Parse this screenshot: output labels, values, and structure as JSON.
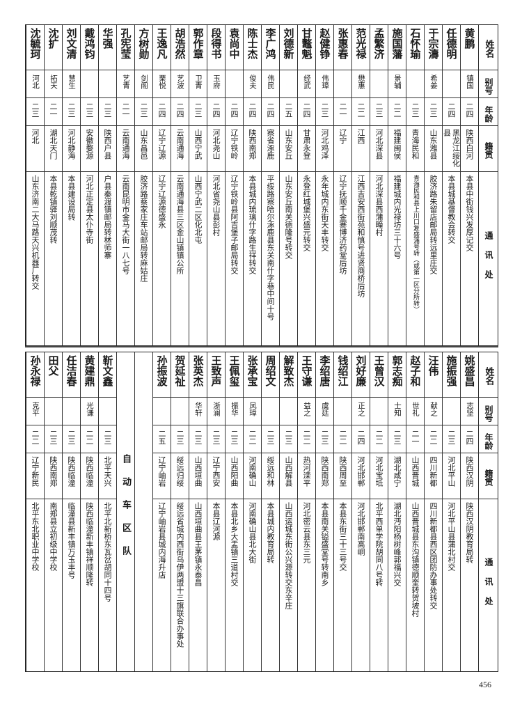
{
  "headers": {
    "name": "姓名",
    "alias": "别号",
    "age": "年龄",
    "native": "籍贯",
    "address": "通讯处"
  },
  "top_table": [
    {
      "name": "黄鹏",
      "alias": "镇国",
      "age": "二四",
      "native": "陕西白河",
      "address": "本县中街钱兴发厚记交"
    },
    {
      "name": "任德明",
      "alias": "",
      "age": "二四",
      "native": "黑龙江绥化县",
      "address": "本县城基督教会转交"
    },
    {
      "name": "于宗濤",
      "alias": "希姜",
      "age": "二三",
      "native": "山东潍县",
      "address": "胶济路朱留店邮局转远里庄交"
    },
    {
      "name": "石怀瑜",
      "alias": "",
      "age": "二三",
      "native": "青海民和",
      "address": "青海民和县上川口复盛涌号转（或第一区分所转）"
    },
    {
      "name": "施国藩",
      "alias": "景辅",
      "age": "二二",
      "native": "福建闽侯",
      "address": "福建城内光禄坊三十六号"
    },
    {
      "name": "孟繁济",
      "alias": "",
      "age": "二三",
      "native": "河北深县",
      "address": "河北深县西蒲疃村"
    },
    {
      "name": "范光禄",
      "alias": "懋惠",
      "age": "二二",
      "native": "江西",
      "address": "江西吉安西街苑和慎号进贤商桥后坊"
    },
    {
      "name": "张惠春",
      "alias": "",
      "age": "二一",
      "native": "辽宁",
      "address": "辽宁抚顺千金寨博济药堂后坊"
    },
    {
      "name": "赵健铮",
      "alias": "伟璋",
      "age": "二三",
      "native": "河北鸡泽",
      "address": "永年城内东街天丰转交"
    },
    {
      "name": "甘鼇魁",
      "alias": "经武",
      "age": "二四",
      "native": "甘肃永登",
      "address": "永登红城堡兴盛元转交"
    },
    {
      "name": "刘德新",
      "alias": "",
      "age": "二五",
      "native": "山东安丘",
      "address": "山东安丘南关德隆号转交"
    },
    {
      "name": "李广鸿",
      "alias": "伟民",
      "age": "二四",
      "native": "察省涿鹿",
      "address": "平绥路察哈尔涿鹿县东关南什字巷中间十号"
    },
    {
      "name": "陈士杰",
      "alias": "俊夫",
      "age": "二四",
      "native": "陕西南郑",
      "address": "本县城内琉璃什字路生祥转交"
    },
    {
      "name": "袁尚中",
      "alias": "",
      "age": "二四",
      "native": "辽宁铁岭",
      "address": "辽宁铁岭县阿吉堡子邮局转交"
    },
    {
      "name": "段得书",
      "alias": "玉府",
      "age": "二四",
      "native": "河北尧山",
      "address": "河北省尧山县彭村"
    },
    {
      "name": "郭作章",
      "alias": "卫青",
      "age": "二三",
      "native": "山西宁武",
      "address": "山西宁武二区化北屯"
    },
    {
      "name": "胡浩然",
      "alias": "艺波",
      "age": "二四",
      "native": "云南通海",
      "address": "云南通海县三区金山镇镇公所"
    },
    {
      "name": "王逸凡",
      "alias": "栗悦",
      "age": "二四",
      "native": "辽宁辽源",
      "address": "辽宁辽源德盛永"
    },
    {
      "name": "方树勋",
      "alias": "剑阁",
      "age": "二三",
      "native": "山东昌邑",
      "address": "胶济路蔡家庄车站邮局转麻姑庄"
    },
    {
      "name": "孔宪莹",
      "alias": "艺青",
      "age": "二一",
      "native": "云南通海",
      "address": "云南昆明市金马大街一八七号"
    },
    {
      "name": "华强",
      "alias": "",
      "age": "二三",
      "native": "陕西户县",
      "address": "户县秦渡镇邮局转秫师寨"
    },
    {
      "name": "戴鸿钧",
      "alias": "",
      "age": "二三",
      "native": "安徽婺源",
      "address": "河北正定县太仆寺街"
    },
    {
      "name": "刘文清",
      "alias": "慧生",
      "age": "二三",
      "native": "河北静海",
      "address": "本县建设局转"
    },
    {
      "name": "沈扩",
      "alias": "拓天",
      "age": "二一",
      "native": "湖北天门",
      "address": "本县乾镇驿刘顺茂转"
    },
    {
      "name": "沈毓珂",
      "alias": "河北",
      "age": "二三",
      "native": "河北",
      "address": "山东济南二大马路天兴机器厂转交"
    }
  ],
  "bottom_table": [
    {
      "name": "姚盛昌",
      "alias": "志坚",
      "age": "二四",
      "native": "陕西汉阴",
      "address": "陕西汉阴教育局转"
    },
    {
      "name": "施振强",
      "alias": "",
      "age": "二三",
      "native": "河北平山",
      "address": "河北平山县蒲北村交"
    },
    {
      "name": "汪伟",
      "alias": "献之",
      "age": "二二",
      "native": "四川新都",
      "address": "四川新都县西区团防办事处转交"
    },
    {
      "name": "赵子和",
      "alias": "世礼",
      "age": "二一",
      "native": "山西晋城",
      "address": "山西晋城县东沟镇德顺奎转贺坡村"
    },
    {
      "name": "郭志痴",
      "alias": "士知",
      "age": "二三",
      "native": "湖北咸宁",
      "address": "湖北沔阳杨树峰郭福兴交"
    },
    {
      "name": "王曾汉",
      "alias": "",
      "age": "二二",
      "native": "河北宝坻",
      "address": "北平西单学院胡同八号转"
    },
    {
      "name": "刘好廉",
      "alias": "正之",
      "age": "二四",
      "native": "河北邯郸",
      "address": "河北邯郸南高峒"
    },
    {
      "name": "钱绍江",
      "alias": "",
      "age": "二二",
      "native": "陕西周至",
      "address": "本县东街三十三号交"
    },
    {
      "name": "李绍唐",
      "alias": "虞廷",
      "age": "二三",
      "native": "陕西南郑",
      "address": "本县南关镒盛堂号转南乡"
    },
    {
      "name": "王守谦",
      "alias": "益之",
      "age": "二二",
      "native": "热河滦平",
      "address": "河北密云县东三元"
    },
    {
      "name": "解致杰",
      "alias": "",
      "age": "二三",
      "native": "山西解县",
      "address": "山西运城东街公兴源转交东辛庄"
    },
    {
      "name": "周绍文",
      "alias": "",
      "age": "二三",
      "native": "绥远和林",
      "address": "本县城内教育局转"
    },
    {
      "name": "张承宝",
      "alias": "凤璋",
      "age": "二二",
      "native": "河南确山",
      "address": "河南确山县北大街"
    },
    {
      "name": "王佩玺",
      "alias": "振华",
      "age": "二三",
      "native": "山西阳曲",
      "address": "本县北乡大盂镇三道村交"
    },
    {
      "name": "王致声",
      "alias": "浙澜",
      "age": "二三",
      "native": "辽宁西安",
      "address": "本县辽河源"
    },
    {
      "name": "张英杰",
      "alias": "华轩",
      "age": "二三",
      "native": "山西垣曲",
      "address": "山西垣曲县王茅镇永泰昌"
    },
    {
      "name": "贺延祉",
      "alias": "",
      "age": "二三",
      "native": "绥远归绥",
      "address": "绥远省城内西街乌伊两盟十三旗联合办事处"
    },
    {
      "name": "孙振波",
      "alias": "",
      "age": "二五",
      "native": "辽宁岫岩",
      "address": "辽宁岫岩县城内海升店"
    }
  ],
  "section_label": "自动车区队",
  "bottom_table_section": [
    {
      "name": "靳文鑫",
      "alias": "",
      "age": "二三",
      "native": "北平天兴",
      "address": "北平北新桥东瓦岔胡同十四号"
    },
    {
      "name": "黄建鼎",
      "alias": "光谦",
      "age": "二二",
      "native": "陕西临潼",
      "address": "陕西临潼新丰镇祥顺隆转"
    },
    {
      "name": "任洁春",
      "alias": "",
      "age": "二三",
      "native": "陕西临潼",
      "address": "临潼县新丰镇万玉丰号"
    },
    {
      "name": "田父",
      "alias": "",
      "age": "二三",
      "native": "陕西南郑",
      "address": "南郑县立初级中学校"
    },
    {
      "name": "孙永禄",
      "alias": "克平",
      "age": "二二",
      "native": "辽宁新民",
      "address": "北平东北职业中学校"
    }
  ],
  "page_number": "456"
}
